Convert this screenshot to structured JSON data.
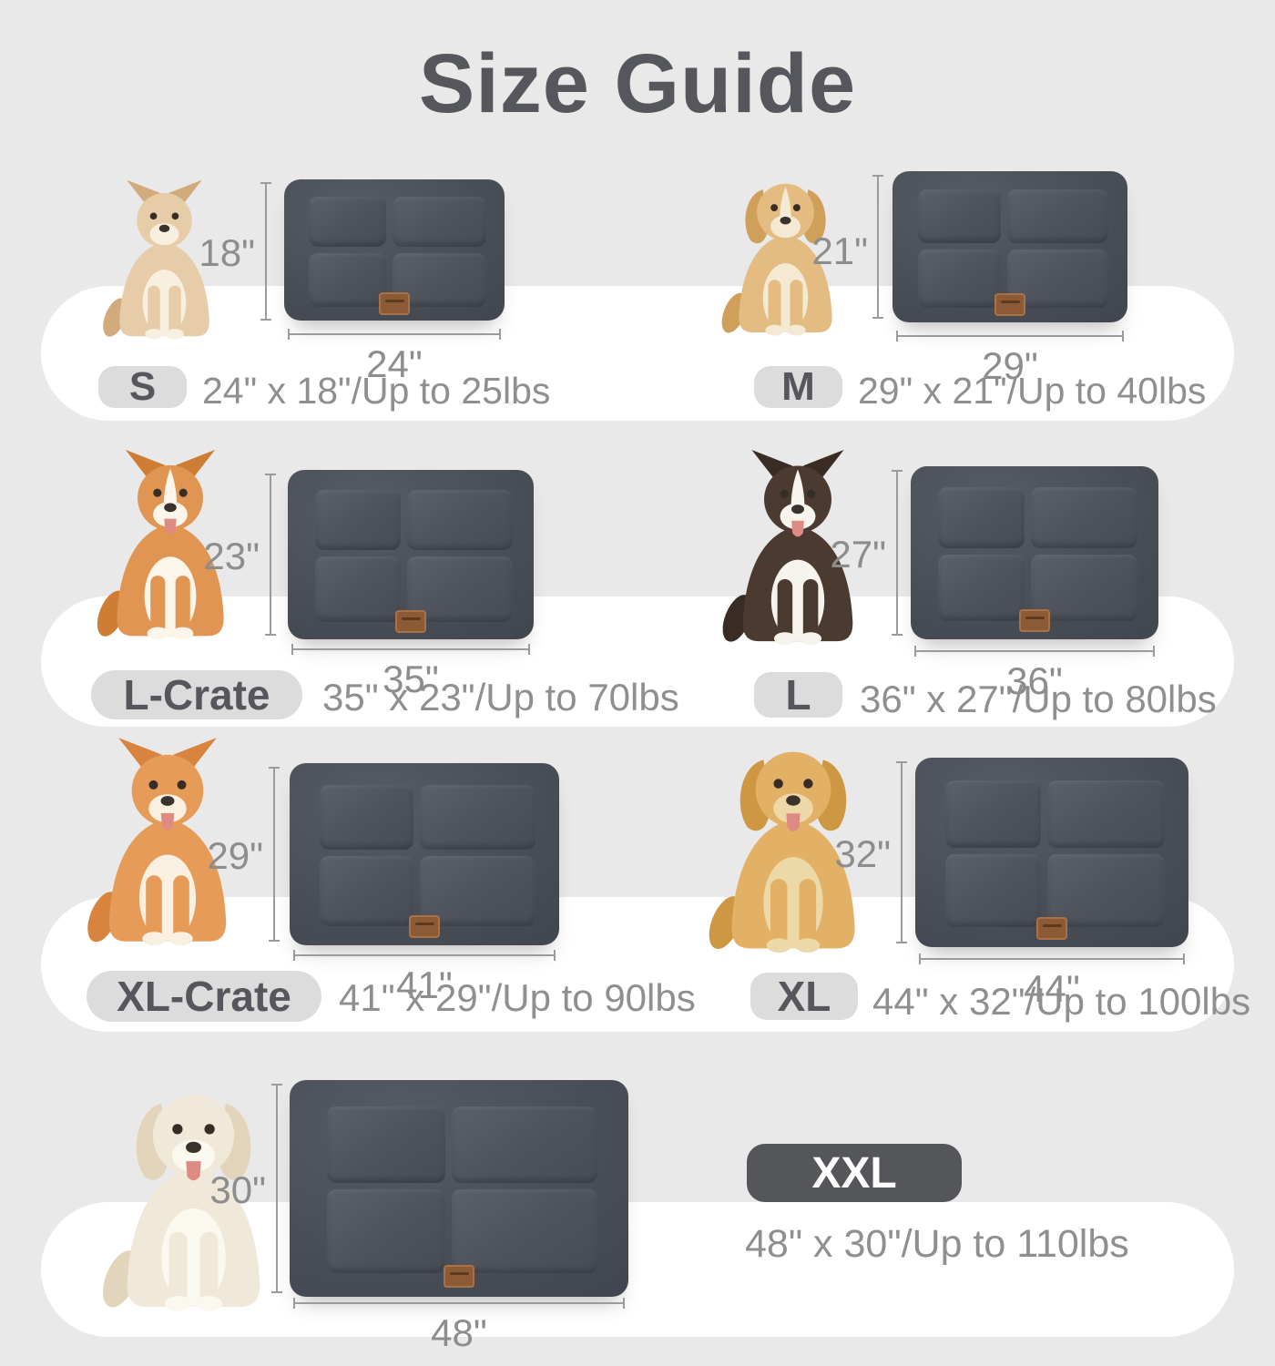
{
  "title": "Size Guide",
  "sizes": [
    {
      "badge": "S",
      "spec": "24\" x 18\"/Up to 25lbs",
      "height_label": "18\"",
      "width_label": "24\"",
      "dog": "chihuahua"
    },
    {
      "badge": "M",
      "spec": "29\" x 21\"/Up to 40lbs",
      "height_label": "21\"",
      "width_label": "29\"",
      "dog": "havanese-puppy"
    },
    {
      "badge": "L-Crate",
      "spec": "35\" x 23\"/Up to 70lbs",
      "height_label": "23\"",
      "width_label": "35\"",
      "dog": "corgi"
    },
    {
      "badge": "L",
      "spec": "36\" x 27\"/Up to 80lbs",
      "height_label": "27\"",
      "width_label": "36\"",
      "dog": "border-collie"
    },
    {
      "badge": "XL-Crate",
      "spec": "41\" x 29\"/Up to 90lbs",
      "height_label": "29\"",
      "width_label": "41\"",
      "dog": "shiba-inu"
    },
    {
      "badge": "XL",
      "spec": "44\" x 32\"/Up to 100lbs",
      "height_label": "32\"",
      "width_label": "44\"",
      "dog": "golden-retriever"
    },
    {
      "badge": "XXL",
      "spec": "48\" x 30\"/Up to 110lbs",
      "height_label": "30\"",
      "width_label": "48\"",
      "dog": "cream-retriever"
    }
  ],
  "colors": {
    "background": "#e9e9e9",
    "band": "#ffffff",
    "title_text": "#55575c",
    "mat": "#474b53",
    "mat_panel": "#4d525b",
    "badge_bg": "#dcdcdc",
    "badge_text": "#55575c",
    "xxl_badge_bg": "#55565a",
    "xxl_badge_text": "#ffffff",
    "dimension_line": "#9b9b9b",
    "dimension_text": "#8d8d8d",
    "spec_text": "#8f8f8f",
    "brand_tag": "#8c5a34"
  }
}
